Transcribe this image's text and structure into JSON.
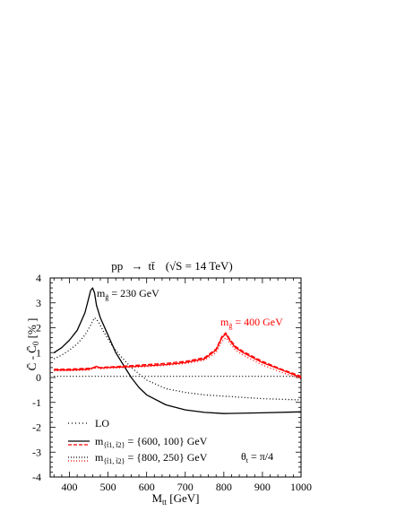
{
  "chart_data": {
    "type": "line",
    "title": "pp → tt̄  (√S = 14 TeV)",
    "xlabel": "Mtt [GeV]",
    "ylabel": "C̄ - C̄0 [%]",
    "xlim": [
      350,
      1000
    ],
    "ylim": [
      -4,
      4
    ],
    "xticks": [
      "400",
      "500",
      "600",
      "700",
      "800",
      "900",
      "1000"
    ],
    "yticks": [
      "-4",
      "-3",
      "-2",
      "-1",
      "0",
      "1",
      "2",
      "3",
      "4"
    ],
    "annotations": {
      "gluino_230": "m g̃ = 230 GeV",
      "gluino_400": "m g̃ = 400 GeV",
      "theta": "θt = π/4"
    },
    "legend": {
      "placement": "bottom-left",
      "entries": [
        {
          "label": "LO"
        },
        {
          "label": "m{t̃1, t̃2} = {600, 100} GeV"
        },
        {
          "label": "m{t̃1, t̃2} = {800, 250} GeV"
        }
      ]
    },
    "colors": {
      "black": "#000000",
      "red": "#ff0000"
    },
    "series": [
      {
        "style": "dotted",
        "color": "#000000",
        "x": [
          360,
          1000
        ],
        "y": [
          0.05,
          0.05
        ]
      },
      {
        "style": "solid",
        "color": "#000000",
        "x": [
          360,
          380,
          400,
          420,
          440,
          450,
          455,
          460,
          465,
          470,
          480,
          500,
          520,
          540,
          560,
          580,
          600,
          650,
          700,
          750,
          800,
          900,
          1000
        ],
        "y": [
          1.0,
          1.2,
          1.5,
          1.9,
          2.6,
          3.2,
          3.5,
          3.6,
          3.4,
          2.9,
          2.4,
          1.7,
          1.0,
          0.5,
          0.0,
          -0.4,
          -0.7,
          -1.1,
          -1.3,
          -1.4,
          -1.45,
          -1.42,
          -1.38
        ]
      },
      {
        "style": "dotted",
        "color": "#000000",
        "x": [
          360,
          380,
          400,
          420,
          440,
          455,
          465,
          475,
          490,
          510,
          530,
          560,
          600,
          650,
          700,
          750,
          800,
          900,
          1000
        ],
        "y": [
          0.75,
          0.9,
          1.1,
          1.35,
          1.7,
          2.1,
          2.4,
          2.25,
          1.8,
          1.3,
          0.9,
          0.4,
          -0.1,
          -0.45,
          -0.6,
          -0.7,
          -0.75,
          -0.85,
          -0.9
        ]
      },
      {
        "style": "solid",
        "color": "#ff0000",
        "x": [
          360,
          400,
          450,
          470,
          480,
          500,
          550,
          600,
          650,
          700,
          750,
          780,
          795,
          805,
          815,
          830,
          850,
          900,
          950,
          1000
        ],
        "y": [
          0.3,
          0.3,
          0.33,
          0.45,
          0.38,
          0.4,
          0.43,
          0.47,
          0.52,
          0.6,
          0.75,
          1.1,
          1.6,
          1.75,
          1.5,
          1.2,
          1.0,
          0.6,
          0.3,
          0.0
        ]
      },
      {
        "style": "dotted",
        "color": "#ff0000",
        "x": [
          360,
          400,
          450,
          470,
          480,
          500,
          550,
          600,
          650,
          700,
          750,
          780,
          795,
          805,
          815,
          830,
          850,
          900,
          950,
          1000
        ],
        "y": [
          0.27,
          0.27,
          0.3,
          0.4,
          0.35,
          0.37,
          0.4,
          0.44,
          0.49,
          0.56,
          0.7,
          1.0,
          1.45,
          1.6,
          1.4,
          1.1,
          0.9,
          0.5,
          0.2,
          -0.05
        ]
      },
      {
        "style": "dashed",
        "color": "#ff0000",
        "x": [
          360,
          400,
          450,
          500,
          550,
          600,
          650,
          700,
          750,
          780,
          795,
          805,
          815,
          830,
          850,
          900,
          950,
          1000
        ],
        "y": [
          0.33,
          0.34,
          0.37,
          0.42,
          0.47,
          0.52,
          0.57,
          0.65,
          0.8,
          1.15,
          1.65,
          1.8,
          1.55,
          1.25,
          1.05,
          0.65,
          0.33,
          0.05
        ]
      }
    ]
  }
}
